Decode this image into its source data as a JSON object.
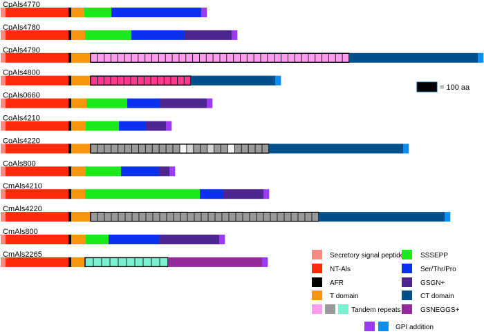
{
  "colors": {
    "signal": "#f58a82",
    "ntals": "#ff2a0a",
    "afr": "#000000",
    "tdomain": "#f7960e",
    "sssepp": "#1aea1a",
    "serthrpro": "#0a32ee",
    "gsgn": "#4e2690",
    "ctdomain": "#00508c",
    "gsneggs": "#922a9a",
    "gpi_a": "#9a3af2",
    "gpi_b": "#0a8ef2",
    "tr_pink": "#ff9cf0",
    "tr_magenta": "#ff3a8e",
    "tr_gray": "#9a9a9a",
    "tr_cyan": "#7af0d2",
    "tr_light": "#d6d6d6",
    "tr_white": "#f6f6f6"
  },
  "proteins": [
    {
      "name": "CpAls4770",
      "domains": [
        {
          "type": "signal",
          "len": 7
        },
        {
          "type": "ntals",
          "len": 91
        },
        {
          "type": "afr",
          "len": 4
        },
        {
          "type": "tdomain",
          "len": 19
        },
        {
          "type": "sssepp",
          "len": 39
        },
        {
          "type": "serthrpro",
          "len": 130
        },
        {
          "type": "gpi",
          "color": "gpi_a",
          "len": 8
        }
      ]
    },
    {
      "name": "CpAls4780",
      "domains": [
        {
          "type": "signal",
          "len": 7
        },
        {
          "type": "ntals",
          "len": 91
        },
        {
          "type": "afr",
          "len": 4
        },
        {
          "type": "tdomain",
          "len": 20
        },
        {
          "type": "sssepp",
          "len": 67
        },
        {
          "type": "serthrpro",
          "len": 77
        },
        {
          "type": "gsgn",
          "len": 68
        },
        {
          "type": "gpi",
          "color": "gpi_a",
          "len": 8
        }
      ]
    },
    {
      "name": "CpAls4790",
      "domains": [
        {
          "type": "signal",
          "len": 7
        },
        {
          "type": "ntals",
          "len": 91
        },
        {
          "type": "afr",
          "len": 4
        },
        {
          "type": "tdomain",
          "len": 28
        },
        {
          "type": "repeats",
          "colors": [
            "tr_pink"
          ],
          "count": 38,
          "len": 374
        },
        {
          "type": "ctdomain",
          "len": 186
        },
        {
          "type": "gpi",
          "color": "gpi_b",
          "len": 8
        }
      ]
    },
    {
      "name": "CpAls4800",
      "domains": [
        {
          "type": "signal",
          "len": 7
        },
        {
          "type": "ntals",
          "len": 91
        },
        {
          "type": "afr",
          "len": 4
        },
        {
          "type": "tdomain",
          "len": 28
        },
        {
          "type": "repeats",
          "colors": [
            "tr_magenta"
          ],
          "count": 15,
          "len": 145
        },
        {
          "type": "ctdomain",
          "len": 122
        },
        {
          "type": "gpi",
          "color": "gpi_b",
          "len": 8
        }
      ]
    },
    {
      "name": "CpAls0660",
      "domains": [
        {
          "type": "signal",
          "len": 7
        },
        {
          "type": "ntals",
          "len": 91
        },
        {
          "type": "afr",
          "len": 4
        },
        {
          "type": "tdomain",
          "len": 22
        },
        {
          "type": "sssepp",
          "len": 59
        },
        {
          "type": "serthrpro",
          "len": 47
        },
        {
          "type": "gsgn",
          "len": 68
        },
        {
          "type": "gpi",
          "color": "gpi_a",
          "len": 8
        }
      ]
    },
    {
      "name": "CoAls4210",
      "domains": [
        {
          "type": "signal",
          "len": 7
        },
        {
          "type": "ntals",
          "len": 91
        },
        {
          "type": "afr",
          "len": 4
        },
        {
          "type": "tdomain",
          "len": 21
        },
        {
          "type": "sssepp",
          "len": 48
        },
        {
          "type": "serthrpro",
          "len": 39
        },
        {
          "type": "gsgn",
          "len": 29
        },
        {
          "type": "gpi",
          "color": "gpi_a",
          "len": 8
        }
      ]
    },
    {
      "name": "CoAls4220",
      "domains": [
        {
          "type": "signal",
          "len": 7
        },
        {
          "type": "ntals",
          "len": 91
        },
        {
          "type": "afr",
          "len": 4
        },
        {
          "type": "tdomain",
          "len": 28
        },
        {
          "type": "repeats",
          "colors": [
            "tr_gray",
            "tr_gray",
            "tr_gray",
            "tr_gray",
            "tr_gray",
            "tr_gray",
            "tr_gray",
            "tr_gray",
            "tr_gray",
            "tr_gray",
            "tr_gray",
            "tr_gray",
            "tr_gray",
            "tr_white",
            "tr_light",
            "tr_gray",
            "tr_gray",
            "tr_light",
            "tr_gray",
            "tr_gray",
            "tr_white",
            "tr_gray",
            "tr_gray",
            "tr_gray",
            "tr_gray",
            "tr_gray"
          ],
          "count": 26,
          "len": 258
        },
        {
          "type": "ctdomain",
          "len": 194
        },
        {
          "type": "gpi",
          "color": "gpi_b",
          "len": 8
        }
      ]
    },
    {
      "name": "CoAls800",
      "domains": [
        {
          "type": "signal",
          "len": 7
        },
        {
          "type": "ntals",
          "len": 91
        },
        {
          "type": "afr",
          "len": 4
        },
        {
          "type": "tdomain",
          "len": 21
        },
        {
          "type": "sssepp",
          "len": 51
        },
        {
          "type": "serthrpro",
          "len": 55
        },
        {
          "type": "gsgn",
          "len": 15
        },
        {
          "type": "gpi",
          "color": "gpi_a",
          "len": 8
        }
      ]
    },
    {
      "name": "CmAls4210",
      "domains": [
        {
          "type": "signal",
          "len": 7
        },
        {
          "type": "ntals",
          "len": 91
        },
        {
          "type": "afr",
          "len": 4
        },
        {
          "type": "tdomain",
          "len": 20
        },
        {
          "type": "sssepp",
          "len": 166
        },
        {
          "type": "serthrpro",
          "len": 34
        },
        {
          "type": "gsgn",
          "len": 58
        },
        {
          "type": "gpi",
          "color": "gpi_a",
          "len": 8
        }
      ]
    },
    {
      "name": "CmAls4220",
      "domains": [
        {
          "type": "signal",
          "len": 7
        },
        {
          "type": "ntals",
          "len": 91
        },
        {
          "type": "afr",
          "len": 4
        },
        {
          "type": "tdomain",
          "len": 28
        },
        {
          "type": "repeats",
          "colors": [
            "tr_gray"
          ],
          "count": 33,
          "len": 330
        },
        {
          "type": "ctdomain",
          "len": 182
        },
        {
          "type": "gpi",
          "color": "gpi_b",
          "len": 8
        }
      ]
    },
    {
      "name": "CmAls800",
      "domains": [
        {
          "type": "signal",
          "len": 7
        },
        {
          "type": "ntals",
          "len": 91
        },
        {
          "type": "afr",
          "len": 4
        },
        {
          "type": "tdomain",
          "len": 21
        },
        {
          "type": "sssepp",
          "len": 33
        },
        {
          "type": "serthrpro",
          "len": 73
        },
        {
          "type": "gsgn",
          "len": 87
        },
        {
          "type": "gpi",
          "color": "gpi_a",
          "len": 8
        }
      ]
    },
    {
      "name": "CmAls2265",
      "domains": [
        {
          "type": "signal",
          "len": 7
        },
        {
          "type": "ntals",
          "len": 91
        },
        {
          "type": "afr",
          "len": 4
        },
        {
          "type": "tdomain",
          "len": 20
        },
        {
          "type": "repeats",
          "colors": [
            "tr_cyan"
          ],
          "count": 10,
          "len": 120
        },
        {
          "type": "gsneggs",
          "len": 136
        },
        {
          "type": "gpi",
          "color": "gpi_a",
          "len": 8
        }
      ]
    }
  ],
  "scale": {
    "label": "= 100 aa"
  },
  "legend": {
    "signal": "Secretory signal peptide",
    "ntals": "NT-Als",
    "afr": "AFR",
    "tdomain": "T domain",
    "repeats": "Tandem repeats",
    "sssepp": "SSSEPP",
    "serthrpro": "Ser/Thr/Pro",
    "gsgn": "GSGN+",
    "ctdomain": "CT domain",
    "gsneggs": "GSNEGGS+",
    "gpi": "GPI addition"
  }
}
